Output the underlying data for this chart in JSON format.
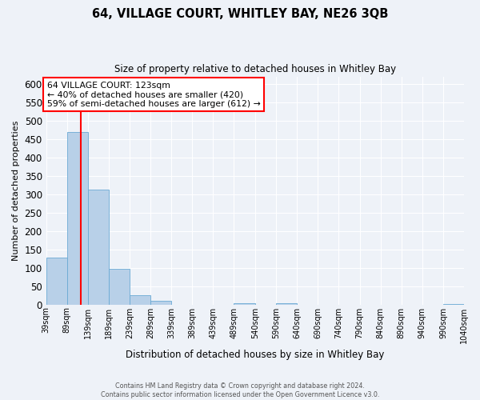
{
  "title": "64, VILLAGE COURT, WHITLEY BAY, NE26 3QB",
  "subtitle": "Size of property relative to detached houses in Whitley Bay",
  "xlabel": "Distribution of detached houses by size in Whitley Bay",
  "ylabel": "Number of detached properties",
  "bin_edges": [
    39,
    89,
    139,
    189,
    239,
    289,
    339,
    389,
    439,
    489,
    540,
    590,
    640,
    690,
    740,
    790,
    840,
    890,
    940,
    990,
    1040
  ],
  "bin_labels": [
    "39sqm",
    "89sqm",
    "139sqm",
    "189sqm",
    "239sqm",
    "289sqm",
    "339sqm",
    "389sqm",
    "439sqm",
    "489sqm",
    "540sqm",
    "590sqm",
    "640sqm",
    "690sqm",
    "740sqm",
    "790sqm",
    "840sqm",
    "890sqm",
    "940sqm",
    "990sqm",
    "1040sqm"
  ],
  "counts": [
    128,
    470,
    313,
    96,
    26,
    11,
    0,
    0,
    0,
    3,
    0,
    3,
    0,
    0,
    0,
    0,
    0,
    0,
    0,
    2
  ],
  "bar_color": "#b8d0e8",
  "bar_edge_color": "#6aaad4",
  "red_line_x": 123,
  "annotation_title": "64 VILLAGE COURT: 123sqm",
  "annotation_line1": "← 40% of detached houses are smaller (420)",
  "annotation_line2": "59% of semi-detached houses are larger (612) →",
  "ylim": [
    0,
    620
  ],
  "yticks": [
    0,
    50,
    100,
    150,
    200,
    250,
    300,
    350,
    400,
    450,
    500,
    550,
    600
  ],
  "footer_line1": "Contains HM Land Registry data © Crown copyright and database right 2024.",
  "footer_line2": "Contains public sector information licensed under the Open Government Licence v3.0.",
  "background_color": "#eef2f8",
  "plot_bg_color": "#eef2f8"
}
